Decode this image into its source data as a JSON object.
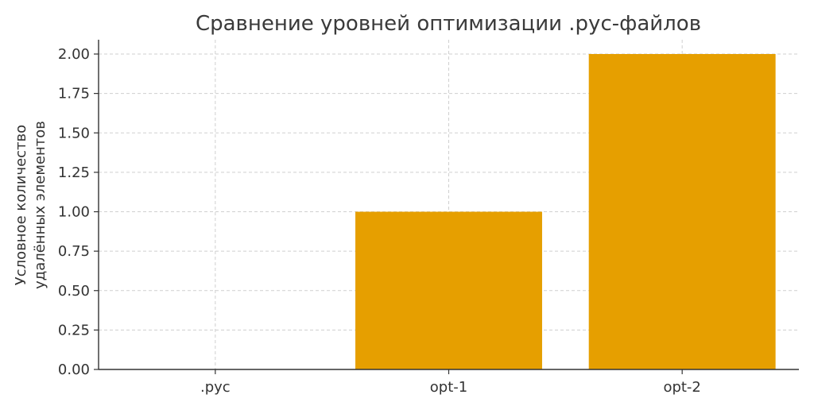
{
  "chart_data": {
    "type": "bar",
    "title": "Сравнение уровней оптимизации .pyc-файлов",
    "ylabel_lines": [
      "Условное количество",
      "удалённых элементов"
    ],
    "xlabel": "",
    "categories": [
      ".pyc",
      "opt-1",
      "opt-2"
    ],
    "values": [
      0,
      1,
      2
    ],
    "ylim": [
      0,
      2
    ],
    "yticks": [
      "0.00",
      "0.25",
      "0.50",
      "0.75",
      "1.00",
      "1.25",
      "1.50",
      "1.75",
      "2.00"
    ],
    "grid": true,
    "bar_color": "#E69F00"
  }
}
